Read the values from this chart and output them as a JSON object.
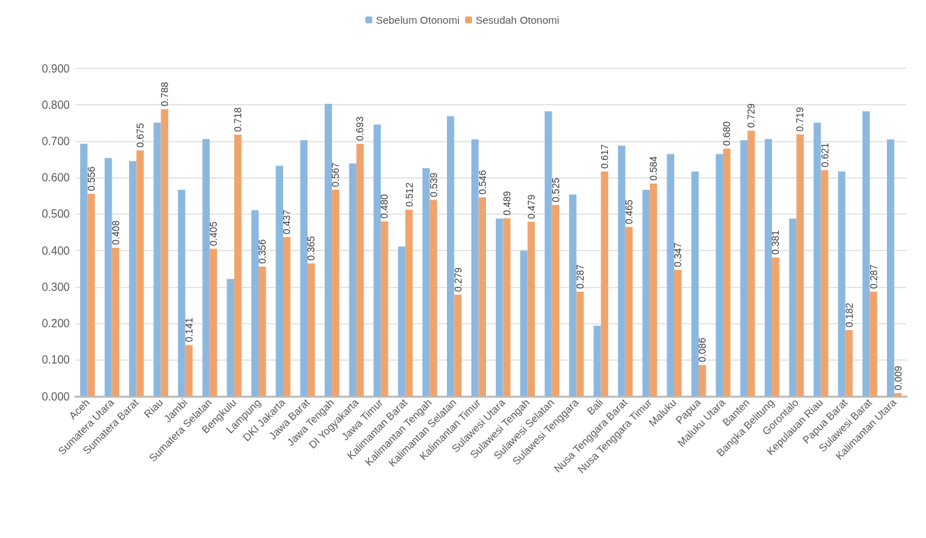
{
  "chart_data": {
    "type": "bar",
    "categories": [
      "Aceh",
      "Sumatera Utara",
      "Sumatera Barat",
      "Riau",
      "Jambi",
      "Sumatera Selatan",
      "Bengkulu",
      "Lampung",
      "DKI Jakarta",
      "Jawa Barat",
      "Jawa Tengah",
      "DI Yogyakarta",
      "Jawa Timur",
      "Kalimantan Barat",
      "Kalimantan Tengah",
      "Kalimantan Selatan",
      "Kalimantan Timur",
      "Sulawesi Utara",
      "Sulawesi Tengah",
      "Sulawesi Selatan",
      "Sulawesi Tenggara",
      "Bali",
      "Nusa Tenggara Barat",
      "Nusa Tenggara Timur",
      "Maluku",
      "Papua",
      "Maluku Utara",
      "Banten",
      "Bangka Belitung",
      "Gorontalo",
      "Kepulauan Riau",
      "Papua Barat",
      "Sulawesi Barat",
      "Kalimantan Utara"
    ],
    "series": [
      {
        "name": "Sebelum Otonomi",
        "color": "#8cb8e0",
        "values": [
          0.693,
          0.654,
          0.646,
          0.751,
          0.567,
          0.706,
          0.322,
          0.511,
          0.633,
          0.703,
          0.803,
          0.639,
          0.746,
          0.411,
          0.626,
          0.769,
          0.705,
          0.488,
          0.4,
          0.782,
          0.554,
          0.194,
          0.688,
          0.567,
          0.665,
          0.617,
          0.665,
          0.703,
          0.706,
          0.488,
          0.751,
          0.617,
          0.782,
          0.705
        ]
      },
      {
        "name": "Sesudah Otonomi",
        "color": "#f0a46c",
        "values": [
          0.556,
          0.408,
          0.675,
          0.788,
          0.141,
          0.405,
          0.718,
          0.356,
          0.437,
          0.365,
          0.567,
          0.693,
          0.48,
          0.512,
          0.539,
          0.279,
          0.546,
          0.489,
          0.479,
          0.525,
          0.287,
          0.617,
          0.465,
          0.584,
          0.347,
          0.086,
          0.68,
          0.729,
          0.381,
          0.719,
          0.621,
          0.182,
          0.287,
          0.009
        ],
        "value_labels": [
          "0.556",
          "0.408",
          "0.675",
          "0.788",
          "0.141",
          "0.405",
          "0.718",
          "0.356",
          "0.437",
          "0.365",
          "0.567",
          "0.693",
          "0.480",
          "0.512",
          "0.539",
          "0.279",
          "0.546",
          "0.489",
          "0.479",
          "0.525",
          "0.287",
          "0.617",
          "0.465",
          "0.584",
          "0.347",
          "0.086",
          "0.680",
          "0.729",
          "0.381",
          "0.719",
          "0.621",
          "0.182",
          "0.287",
          "0.009"
        ]
      }
    ],
    "ylim": [
      0,
      0.9
    ],
    "yticks": [
      {
        "value": 0,
        "label": "0.000"
      },
      {
        "value": 0.1,
        "label": "0.100"
      },
      {
        "value": 0.2,
        "label": "0.200"
      },
      {
        "value": 0.3,
        "label": "0.300"
      },
      {
        "value": 0.4,
        "label": "0.400"
      },
      {
        "value": 0.5,
        "label": "0.500"
      },
      {
        "value": 0.6,
        "label": "0.600"
      },
      {
        "value": 0.7,
        "label": "0.700"
      },
      {
        "value": 0.8,
        "label": "0.800"
      },
      {
        "value": 0.9,
        "label": "0.900"
      }
    ],
    "grid": "y",
    "legend": "top"
  }
}
